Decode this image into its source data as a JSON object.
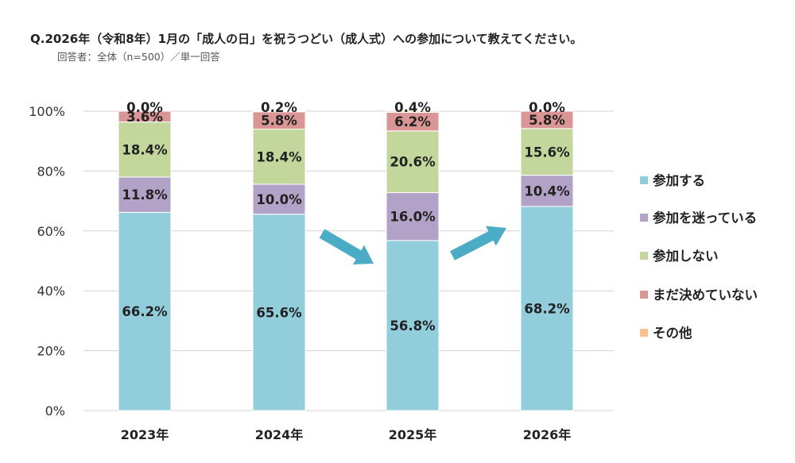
{
  "header": {
    "title": "Q.2026年（令和8年）1月の「成人の日」を祝うつどい（成人式）への参加について教えてください。",
    "subtitle": "回答者：全体（n=500）／単一回答"
  },
  "chart_data": {
    "type": "bar",
    "stacked": true,
    "title": "Q.2026年（令和8年）1月の「成人の日」を祝うつどい（成人式）への参加について教えてください。",
    "subtitle": "回答者：全体（n=500）／単一回答",
    "categories": [
      "2023年",
      "2024年",
      "2025年",
      "2026年"
    ],
    "ylim": [
      0,
      100
    ],
    "yticks": [
      "0%",
      "20%",
      "40%",
      "60%",
      "80%",
      "100%"
    ],
    "grid": true,
    "legend_position": "right",
    "series": [
      {
        "name": "参加する",
        "color": "#92CDDC",
        "values": [
          66.2,
          65.6,
          56.8,
          68.2
        ],
        "labels": [
          "66.2%",
          "65.6%",
          "56.8%",
          "68.2%"
        ]
      },
      {
        "name": "参加を迷っている",
        "color": "#B3A2C7",
        "values": [
          11.8,
          10.0,
          16.0,
          10.4
        ],
        "labels": [
          "11.8%",
          "10.0%",
          "16.0%",
          "10.4%"
        ]
      },
      {
        "name": "参加しない",
        "color": "#C3D69B",
        "values": [
          18.4,
          18.4,
          20.6,
          15.6
        ],
        "labels": [
          "18.4%",
          "18.4%",
          "20.6%",
          "15.6%"
        ]
      },
      {
        "name": "まだ決めていない",
        "color": "#D99694",
        "values": [
          3.6,
          5.8,
          6.2,
          5.8
        ],
        "labels": [
          "3.6%",
          "5.8%",
          "6.2%",
          "5.8%"
        ]
      },
      {
        "name": "その他",
        "color": "#FAC090",
        "values": [
          0.0,
          0.2,
          0.4,
          0.0
        ],
        "labels": [
          "0.0%",
          "0.2%",
          "0.4%",
          "0.0%"
        ]
      }
    ],
    "annotations": [
      {
        "type": "arrow",
        "direction": "down",
        "between": [
          "2024年",
          "2025年"
        ],
        "color": "#4BACC6"
      },
      {
        "type": "arrow",
        "direction": "up",
        "between": [
          "2025年",
          "2026年"
        ],
        "color": "#4BACC6"
      }
    ]
  }
}
